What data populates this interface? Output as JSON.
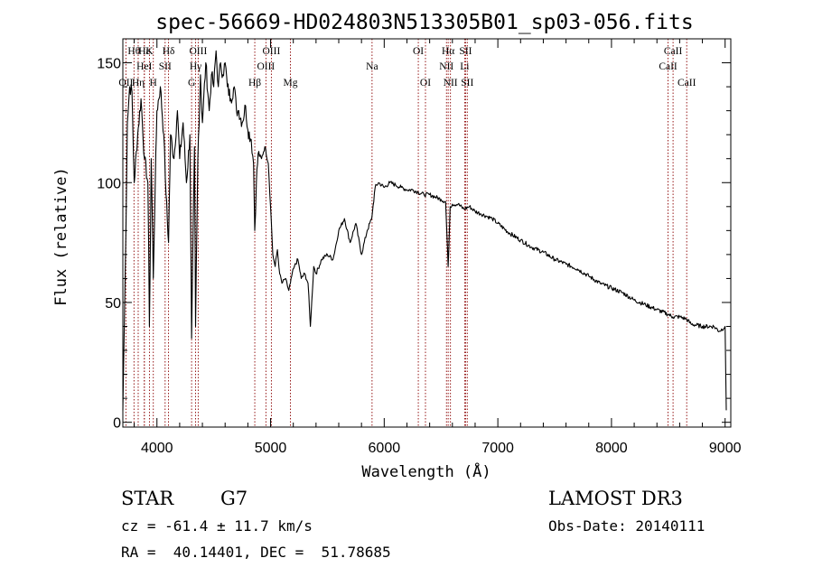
{
  "chart_data": {
    "type": "line",
    "title": "spec-56669-HD024803N513305B01_sp03-056.fits",
    "xlabel": "Wavelength (Å)",
    "ylabel": "Flux (relative)",
    "xlim": [
      3700,
      9050
    ],
    "ylim": [
      -2,
      160
    ],
    "xticks": [
      4000,
      5000,
      6000,
      7000,
      8000,
      9000
    ],
    "yticks": [
      0,
      50,
      100,
      150
    ],
    "series": [
      {
        "color": "#000000",
        "x": [
          3700,
          3720,
          3740,
          3760,
          3780,
          3800,
          3830,
          3860,
          3890,
          3920,
          3934,
          3950,
          3968,
          3985,
          4000,
          4030,
          4060,
          4080,
          4102,
          4120,
          4150,
          4180,
          4200,
          4230,
          4260,
          4290,
          4305,
          4330,
          4340,
          4360,
          4383,
          4400,
          4430,
          4460,
          4480,
          4500,
          4520,
          4540,
          4560,
          4580,
          4600,
          4620,
          4650,
          4680,
          4700,
          4720,
          4750,
          4780,
          4800,
          4830,
          4850,
          4861,
          4875,
          4890,
          4920,
          4950,
          4980,
          5000,
          5020,
          5040,
          5060,
          5080,
          5100,
          5130,
          5160,
          5175,
          5190,
          5210,
          5240,
          5270,
          5300,
          5330,
          5350,
          5380,
          5400,
          5450,
          5500,
          5550,
          5600,
          5650,
          5700,
          5750,
          5800,
          5850,
          5890,
          5920,
          5950,
          6000,
          6050,
          6100,
          6150,
          6200,
          6250,
          6300,
          6350,
          6400,
          6450,
          6500,
          6540,
          6563,
          6580,
          6600,
          6650,
          6700,
          6750,
          6800,
          6850,
          6900,
          6950,
          7000,
          7100,
          7200,
          7300,
          7400,
          7500,
          7600,
          7700,
          7800,
          7900,
          8000,
          8100,
          8200,
          8300,
          8400,
          8500,
          8540,
          8600,
          8662,
          8700,
          8800,
          8900,
          8950,
          9000,
          9010
        ],
        "y": [
          5,
          60,
          125,
          140,
          138,
          100,
          120,
          135,
          110,
          100,
          40,
          110,
          60,
          100,
          130,
          140,
          120,
          95,
          75,
          120,
          110,
          130,
          110,
          125,
          100,
          120,
          35,
          115,
          40,
          110,
          145,
          125,
          150,
          130,
          145,
          140,
          155,
          140,
          150,
          145,
          150,
          140,
          135,
          140,
          130,
          130,
          125,
          132,
          122,
          118,
          108,
          80,
          100,
          112,
          110,
          115,
          108,
          90,
          70,
          65,
          72,
          62,
          58,
          60,
          55,
          58,
          62,
          65,
          68,
          60,
          62,
          58,
          40,
          65,
          62,
          68,
          70,
          68,
          80,
          85,
          75,
          83,
          70,
          80,
          85,
          98,
          100,
          98,
          100,
          99,
          98,
          97,
          97,
          96,
          95,
          95,
          94,
          93,
          92,
          65,
          90,
          91,
          91,
          89,
          90,
          88,
          87,
          86,
          85,
          83,
          79,
          76,
          73,
          71,
          68,
          66,
          64,
          61,
          58,
          56,
          54,
          51,
          49,
          47,
          45,
          44,
          44,
          43,
          41,
          40,
          40,
          38,
          40,
          5
        ]
      }
    ],
    "spectral_lines": [
      {
        "label": "OII",
        "wavelength": 3727,
        "row": 2
      },
      {
        "label": "Hθ",
        "wavelength": 3798,
        "row": 0
      },
      {
        "label": "Hη",
        "wavelength": 3835,
        "row": 2
      },
      {
        "label": "Hε",
        "wavelength": 3889,
        "row": 0
      },
      {
        "label": "HeI",
        "wavelength": 3889,
        "row": 1
      },
      {
        "label": "K",
        "wavelength": 3934,
        "row": 0
      },
      {
        "label": "H",
        "wavelength": 3968,
        "row": 2
      },
      {
        "label": "SII",
        "wavelength": 4072,
        "row": 1
      },
      {
        "label": "Hδ",
        "wavelength": 4102,
        "row": 0
      },
      {
        "label": "G",
        "wavelength": 4305,
        "row": 2
      },
      {
        "label": "Hγ",
        "wavelength": 4340,
        "row": 1
      },
      {
        "label": "OIII",
        "wavelength": 4363,
        "row": 0
      },
      {
        "label": "Hβ",
        "wavelength": 4861,
        "row": 2
      },
      {
        "label": "OIII",
        "wavelength": 4959,
        "row": 1
      },
      {
        "label": "OIII",
        "wavelength": 5007,
        "row": 0
      },
      {
        "label": "Mg",
        "wavelength": 5175,
        "row": 2
      },
      {
        "label": "Na",
        "wavelength": 5893,
        "row": 1
      },
      {
        "label": "OI",
        "wavelength": 6300,
        "row": 0
      },
      {
        "label": "OI",
        "wavelength": 6363,
        "row": 2
      },
      {
        "label": "NII",
        "wavelength": 6548,
        "row": 1
      },
      {
        "label": "Hα",
        "wavelength": 6563,
        "row": 0
      },
      {
        "label": "NII",
        "wavelength": 6583,
        "row": 2
      },
      {
        "label": "SII",
        "wavelength": 6716,
        "row": 0
      },
      {
        "label": "Li",
        "wavelength": 6708,
        "row": 1
      },
      {
        "label": "SII",
        "wavelength": 6731,
        "row": 2
      },
      {
        "label": "CaII",
        "wavelength": 8498,
        "row": 1
      },
      {
        "label": "CaII",
        "wavelength": 8542,
        "row": 0
      },
      {
        "label": "CaII",
        "wavelength": 8662,
        "row": 2
      }
    ],
    "line_color": "#8b0000",
    "grid": false
  },
  "info": {
    "object_class": "STAR",
    "subclass": "G7",
    "cz": "cz = -61.4 ± 11.7 km/s",
    "coords": "RA =  40.14401, DEC =  51.78685",
    "survey": "LAMOST DR3",
    "obs_date": "Obs-Date: 20140111"
  }
}
